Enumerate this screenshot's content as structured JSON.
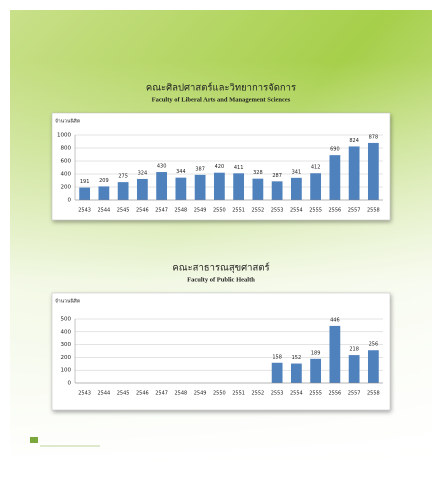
{
  "chart_data": [
    {
      "type": "bar",
      "title": "คณะศิลปศาสตร์และวิทยาการจัดการ",
      "subtitle": "Faculty of Liberal Arts and Management Sciences",
      "ylabel": "จำนวนนิสิต",
      "categories": [
        "2543",
        "2544",
        "2545",
        "2546",
        "2547",
        "2548",
        "2549",
        "2550",
        "2551",
        "2552",
        "2553",
        "2554",
        "2555",
        "2556",
        "2557",
        "2558"
      ],
      "values": [
        191,
        209,
        275,
        324,
        430,
        344,
        387,
        420,
        411,
        328,
        287,
        341,
        412,
        690,
        824,
        878
      ],
      "color": "#4f81bd",
      "ylim": [
        0,
        1000
      ],
      "yticks": [
        0,
        200,
        400,
        600,
        800,
        1000
      ],
      "grid": true
    },
    {
      "type": "bar",
      "title": "คณะสาธารณสุขศาสตร์",
      "subtitle": "Faculty of Public Health",
      "ylabel": "จำนวนนิสิต",
      "categories": [
        "2543",
        "2544",
        "2545",
        "2546",
        "2547",
        "2548",
        "2549",
        "2550",
        "2551",
        "2552",
        "2553",
        "2554",
        "2555",
        "2556",
        "2557",
        "2558"
      ],
      "values": [
        null,
        null,
        null,
        null,
        null,
        null,
        null,
        null,
        null,
        null,
        158,
        152,
        189,
        446,
        218,
        256
      ],
      "color": "#4f81bd",
      "ylim": [
        0,
        500
      ],
      "yticks": [
        0,
        100,
        200,
        300,
        400,
        500
      ],
      "grid": true
    }
  ]
}
